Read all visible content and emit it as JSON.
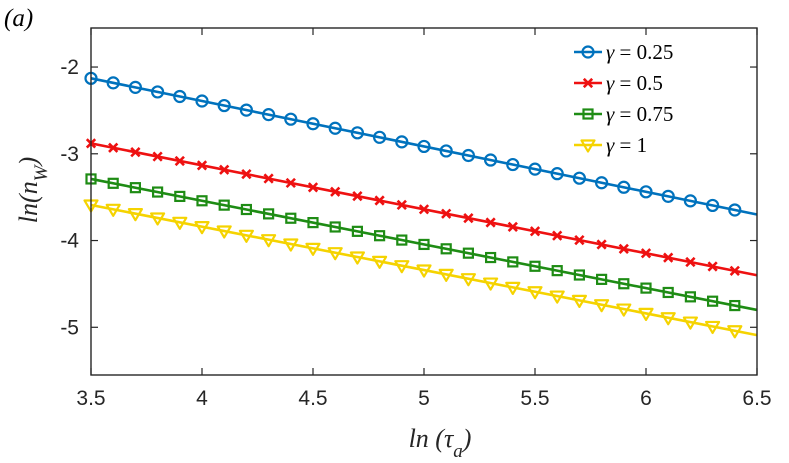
{
  "panel_label": "(a)",
  "chart_data": {
    "type": "line",
    "title": "",
    "xlabel": "ln (τ_a)",
    "ylabel": "ln(n_W)",
    "xlabel_main": "ln (τ",
    "xlabel_sub": "a",
    "xlabel_close": ")",
    "ylabel_main": "ln(n",
    "ylabel_sub": "W",
    "ylabel_close": ")",
    "xlim": [
      3.5,
      6.5
    ],
    "ylim": [
      -5.55,
      -1.55
    ],
    "x_ticks": [
      3.5,
      4,
      4.5,
      5,
      5.5,
      6,
      6.5
    ],
    "x_tick_labels": [
      "3.5",
      "4",
      "4.5",
      "5",
      "5.5",
      "6",
      "6.5"
    ],
    "y_ticks": [
      -2,
      -3,
      -4,
      -5
    ],
    "y_tick_labels": [
      "-2",
      "-3",
      "-4",
      "-5"
    ],
    "grid": false,
    "legend_position": "top-right",
    "x_range": [
      3.5,
      6.5
    ],
    "marker_x_start": 3.5,
    "marker_x_step": 0.1,
    "marker_count": 30,
    "series": [
      {
        "name": "γ = 0.25",
        "legend_prefix": "γ",
        "legend_value": " = 0.25",
        "color": "#0072BD",
        "marker": "circle",
        "y_start": -2.13,
        "y_end": -3.7
      },
      {
        "name": "γ = 0.5",
        "legend_prefix": "γ",
        "legend_value": " = 0.5",
        "color": "#EE1111",
        "marker": "x",
        "y_start": -2.88,
        "y_end": -4.4
      },
      {
        "name": "γ = 0.75",
        "legend_prefix": "γ",
        "legend_value": " = 0.75",
        "color": "#1E8C14",
        "marker": "square",
        "y_start": -3.29,
        "y_end": -4.8
      },
      {
        "name": "γ = 1",
        "legend_prefix": "γ",
        "legend_value": " = 1",
        "color": "#F5D300",
        "marker": "triangle",
        "y_start": -3.59,
        "y_end": -5.09
      }
    ]
  }
}
